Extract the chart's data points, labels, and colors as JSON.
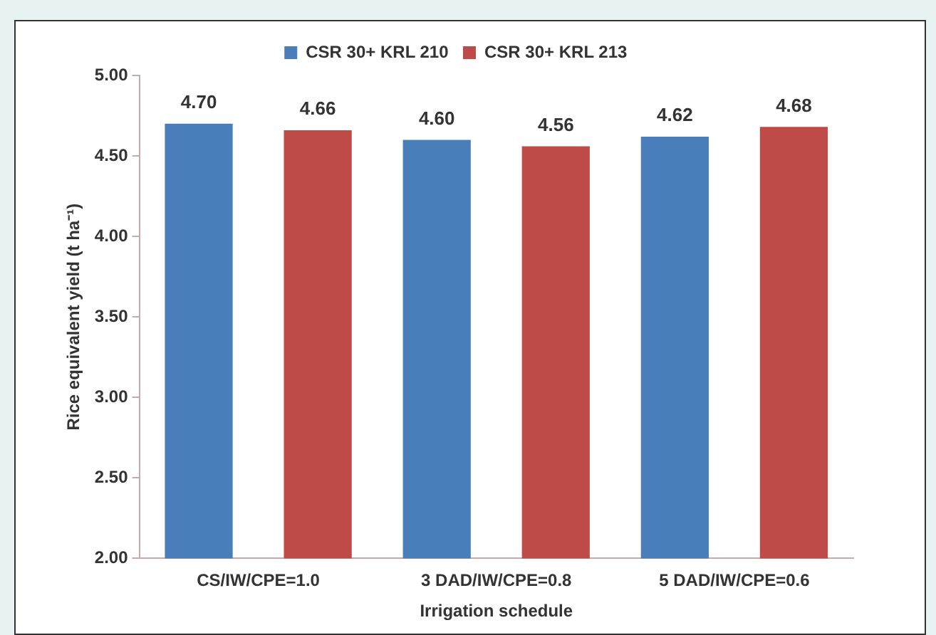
{
  "chart_data": {
    "type": "bar",
    "xlabel": "Irrigation schedule",
    "ylabel": "Rice equivalent yield (t ha⁻¹)",
    "categories": [
      "CS/IW/CPE=1.0",
      "3 DAD/IW/CPE=0.8",
      "5 DAD/IW/CPE=0.6"
    ],
    "series": [
      {
        "name": "CSR 30+ KRL 210",
        "color": "#4a7ebb",
        "values": [
          4.7,
          4.6,
          4.62
        ]
      },
      {
        "name": "CSR 30+ KRL 213",
        "color": "#be4b48",
        "values": [
          4.66,
          4.56,
          4.68
        ]
      }
    ],
    "ylim": [
      2.0,
      5.0
    ],
    "yticks": [
      {
        "value": 2.0,
        "label": "2.00"
      },
      {
        "value": 2.5,
        "label": "2.50"
      },
      {
        "value": 3.0,
        "label": "3.00"
      },
      {
        "value": 3.5,
        "label": "3.50"
      },
      {
        "value": 4.0,
        "label": "4.00"
      },
      {
        "value": 4.5,
        "label": "4.50"
      },
      {
        "value": 5.0,
        "label": "5.00"
      }
    ],
    "value_labels": [
      [
        "4.70",
        "4.60",
        "4.62"
      ],
      [
        "4.66",
        "4.56",
        "4.68"
      ]
    ],
    "grid": false,
    "legend": "top"
  }
}
